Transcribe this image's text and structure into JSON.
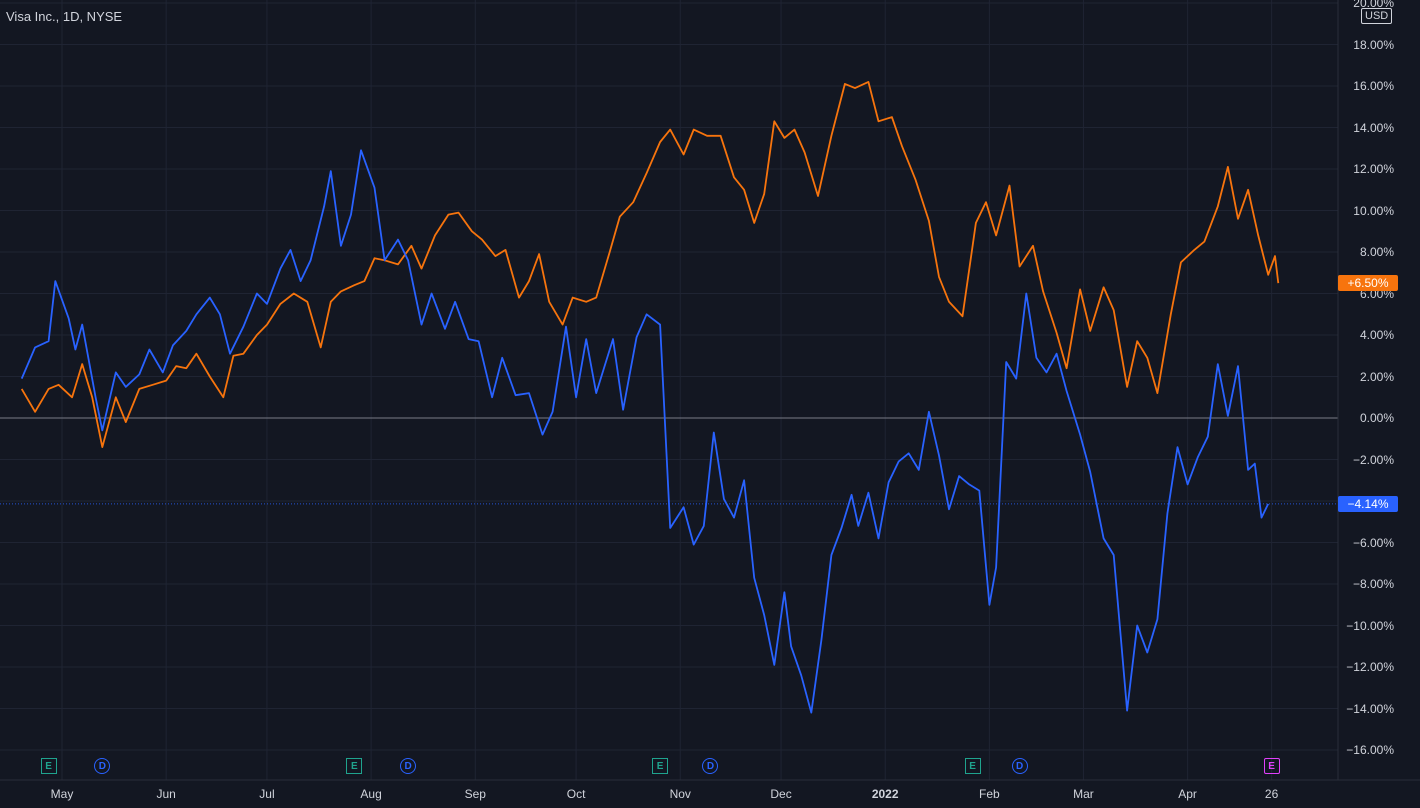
{
  "header": {
    "title": "Visa Inc., 1D, NYSE",
    "currency": "USD"
  },
  "colors": {
    "background": "#131722",
    "grid": "#1f2433",
    "series_blue": "#2962ff",
    "series_orange": "#f7740d",
    "zero_line": "#787b86",
    "text": "#d1d4dc"
  },
  "events": [
    {
      "type": "E",
      "icon": "earnings-icon",
      "date": "2021-04-27"
    },
    {
      "type": "D",
      "icon": "dividend-icon",
      "date": "2021-05-13"
    },
    {
      "type": "E",
      "icon": "earnings-icon",
      "date": "2021-07-27"
    },
    {
      "type": "D",
      "icon": "dividend-icon",
      "date": "2021-08-12"
    },
    {
      "type": "E",
      "icon": "earnings-icon",
      "date": "2021-10-26"
    },
    {
      "type": "D",
      "icon": "dividend-icon",
      "date": "2021-11-10"
    },
    {
      "type": "E",
      "icon": "earnings-icon",
      "date": "2022-01-27"
    },
    {
      "type": "D",
      "icon": "dividend-icon",
      "date": "2022-02-10"
    },
    {
      "type": "E",
      "icon": "upcoming-earnings-icon",
      "date": "2022-04-26",
      "upcoming": true
    }
  ],
  "chart_data": {
    "type": "line",
    "title": "Visa Inc., 1D, NYSE",
    "y_unit": "%",
    "ylim": [
      -16,
      20
    ],
    "y_ticks": [
      "20.00%",
      "18.00%",
      "16.00%",
      "14.00%",
      "12.00%",
      "10.00%",
      "8.00%",
      "6.00%",
      "4.00%",
      "2.00%",
      "0.00%",
      "-2.00%",
      "-4.00%",
      "-6.00%",
      "-8.00%",
      "-10.00%",
      "-12.00%",
      "-14.00%",
      "-16.00%"
    ],
    "x_ticks": [
      {
        "label": "May",
        "date": "2021-05-01"
      },
      {
        "label": "Jun",
        "date": "2021-06-01"
      },
      {
        "label": "Jul",
        "date": "2021-07-01"
      },
      {
        "label": "Aug",
        "date": "2021-08-01"
      },
      {
        "label": "Sep",
        "date": "2021-09-01"
      },
      {
        "label": "Oct",
        "date": "2021-10-01"
      },
      {
        "label": "Nov",
        "date": "2021-11-01"
      },
      {
        "label": "Dec",
        "date": "2021-12-01"
      },
      {
        "label": "2022",
        "date": "2022-01-01",
        "bold": true
      },
      {
        "label": "Feb",
        "date": "2022-02-01"
      },
      {
        "label": "Mar",
        "date": "2022-03-01"
      },
      {
        "label": "Apr",
        "date": "2022-04-01"
      },
      {
        "label": "26",
        "date": "2022-04-26"
      }
    ],
    "grid": true,
    "series": [
      {
        "color": "#2962ff",
        "last_value_label": "−4.14%",
        "points": [
          [
            "2021-04-19",
            1.9
          ],
          [
            "2021-04-23",
            3.4
          ],
          [
            "2021-04-27",
            3.7
          ],
          [
            "2021-04-29",
            6.6
          ],
          [
            "2021-05-03",
            4.8
          ],
          [
            "2021-05-05",
            3.3
          ],
          [
            "2021-05-07",
            4.5
          ],
          [
            "2021-05-11",
            1.0
          ],
          [
            "2021-05-13",
            -0.6
          ],
          [
            "2021-05-17",
            2.2
          ],
          [
            "2021-05-20",
            1.5
          ],
          [
            "2021-05-24",
            2.1
          ],
          [
            "2021-05-27",
            3.3
          ],
          [
            "2021-05-31",
            2.2
          ],
          [
            "2021-06-03",
            3.5
          ],
          [
            "2021-06-07",
            4.2
          ],
          [
            "2021-06-10",
            5.0
          ],
          [
            "2021-06-14",
            5.8
          ],
          [
            "2021-06-17",
            5.0
          ],
          [
            "2021-06-20",
            3.1
          ],
          [
            "2021-06-24",
            4.4
          ],
          [
            "2021-06-28",
            6.0
          ],
          [
            "2021-07-01",
            5.5
          ],
          [
            "2021-07-05",
            7.2
          ],
          [
            "2021-07-08",
            8.1
          ],
          [
            "2021-07-11",
            6.6
          ],
          [
            "2021-07-14",
            7.6
          ],
          [
            "2021-07-18",
            10.2
          ],
          [
            "2021-07-20",
            11.9
          ],
          [
            "2021-07-23",
            8.3
          ],
          [
            "2021-07-26",
            9.8
          ],
          [
            "2021-07-29",
            12.9
          ],
          [
            "2021-08-02",
            11.1
          ],
          [
            "2021-08-05",
            7.6
          ],
          [
            "2021-08-09",
            8.6
          ],
          [
            "2021-08-12",
            7.6
          ],
          [
            "2021-08-16",
            4.5
          ],
          [
            "2021-08-19",
            6.0
          ],
          [
            "2021-08-23",
            4.3
          ],
          [
            "2021-08-26",
            5.6
          ],
          [
            "2021-08-30",
            3.8
          ],
          [
            "2021-09-02",
            3.7
          ],
          [
            "2021-09-06",
            1.0
          ],
          [
            "2021-09-09",
            2.9
          ],
          [
            "2021-09-13",
            1.1
          ],
          [
            "2021-09-17",
            1.2
          ],
          [
            "2021-09-21",
            -0.8
          ],
          [
            "2021-09-24",
            0.3
          ],
          [
            "2021-09-28",
            4.4
          ],
          [
            "2021-10-01",
            1.0
          ],
          [
            "2021-10-04",
            3.8
          ],
          [
            "2021-10-07",
            1.2
          ],
          [
            "2021-10-12",
            3.8
          ],
          [
            "2021-10-15",
            0.4
          ],
          [
            "2021-10-19",
            3.9
          ],
          [
            "2021-10-22",
            5.0
          ],
          [
            "2021-10-26",
            4.5
          ],
          [
            "2021-10-29",
            -5.3
          ],
          [
            "2021-11-02",
            -4.3
          ],
          [
            "2021-11-05",
            -6.1
          ],
          [
            "2021-11-08",
            -5.2
          ],
          [
            "2021-11-11",
            -0.7
          ],
          [
            "2021-11-14",
            -3.9
          ],
          [
            "2021-11-17",
            -4.8
          ],
          [
            "2021-11-20",
            -3.0
          ],
          [
            "2021-11-23",
            -7.7
          ],
          [
            "2021-11-26",
            -9.5
          ],
          [
            "2021-11-29",
            -11.9
          ],
          [
            "2021-12-02",
            -8.4
          ],
          [
            "2021-12-04",
            -11.0
          ],
          [
            "2021-12-07",
            -12.4
          ],
          [
            "2021-12-10",
            -14.2
          ],
          [
            "2021-12-13",
            -10.7
          ],
          [
            "2021-12-16",
            -6.6
          ],
          [
            "2021-12-19",
            -5.3
          ],
          [
            "2021-12-22",
            -3.7
          ],
          [
            "2021-12-24",
            -5.2
          ],
          [
            "2021-12-27",
            -3.6
          ],
          [
            "2021-12-30",
            -5.8
          ],
          [
            "2022-01-02",
            -3.1
          ],
          [
            "2022-01-05",
            -2.1
          ],
          [
            "2022-01-08",
            -1.7
          ],
          [
            "2022-01-11",
            -2.5
          ],
          [
            "2022-01-14",
            0.3
          ],
          [
            "2022-01-17",
            -1.8
          ],
          [
            "2022-01-20",
            -4.4
          ],
          [
            "2022-01-23",
            -2.8
          ],
          [
            "2022-01-26",
            -3.2
          ],
          [
            "2022-01-29",
            -3.5
          ],
          [
            "2022-02-01",
            -9.0
          ],
          [
            "2022-02-03",
            -7.2
          ],
          [
            "2022-02-06",
            2.7
          ],
          [
            "2022-02-09",
            1.9
          ],
          [
            "2022-02-12",
            6.0
          ],
          [
            "2022-02-15",
            2.9
          ],
          [
            "2022-02-18",
            2.2
          ],
          [
            "2022-02-21",
            3.1
          ],
          [
            "2022-02-24",
            1.3
          ],
          [
            "2022-02-28",
            -0.8
          ],
          [
            "2022-03-03",
            -2.6
          ],
          [
            "2022-03-07",
            -5.8
          ],
          [
            "2022-03-10",
            -6.6
          ],
          [
            "2022-03-14",
            -14.1
          ],
          [
            "2022-03-17",
            -10.0
          ],
          [
            "2022-03-20",
            -11.3
          ],
          [
            "2022-03-23",
            -9.7
          ],
          [
            "2022-03-26",
            -4.6
          ],
          [
            "2022-03-29",
            -1.4
          ],
          [
            "2022-04-01",
            -3.2
          ],
          [
            "2022-04-04",
            -1.9
          ],
          [
            "2022-04-07",
            -0.9
          ],
          [
            "2022-04-10",
            2.6
          ],
          [
            "2022-04-13",
            0.1
          ],
          [
            "2022-04-16",
            2.5
          ],
          [
            "2022-04-19",
            -2.5
          ],
          [
            "2022-04-21",
            -2.2
          ],
          [
            "2022-04-23",
            -4.8
          ],
          [
            "2022-04-25",
            -4.14
          ]
        ]
      },
      {
        "color": "#f7740d",
        "last_value_label": "+6.50%",
        "points": [
          [
            "2021-04-19",
            1.4
          ],
          [
            "2021-04-23",
            0.3
          ],
          [
            "2021-04-27",
            1.4
          ],
          [
            "2021-04-30",
            1.6
          ],
          [
            "2021-05-04",
            1.0
          ],
          [
            "2021-05-07",
            2.6
          ],
          [
            "2021-05-10",
            1.0
          ],
          [
            "2021-05-13",
            -1.4
          ],
          [
            "2021-05-17",
            1.0
          ],
          [
            "2021-05-20",
            -0.2
          ],
          [
            "2021-05-24",
            1.4
          ],
          [
            "2021-05-28",
            1.6
          ],
          [
            "2021-06-01",
            1.8
          ],
          [
            "2021-06-04",
            2.5
          ],
          [
            "2021-06-07",
            2.4
          ],
          [
            "2021-06-10",
            3.1
          ],
          [
            "2021-06-14",
            2.0
          ],
          [
            "2021-06-18",
            1.0
          ],
          [
            "2021-06-21",
            3.0
          ],
          [
            "2021-06-24",
            3.1
          ],
          [
            "2021-06-28",
            4.0
          ],
          [
            "2021-07-01",
            4.5
          ],
          [
            "2021-07-05",
            5.5
          ],
          [
            "2021-07-09",
            6.0
          ],
          [
            "2021-07-13",
            5.6
          ],
          [
            "2021-07-17",
            3.4
          ],
          [
            "2021-07-20",
            5.6
          ],
          [
            "2021-07-23",
            6.1
          ],
          [
            "2021-07-27",
            6.4
          ],
          [
            "2021-07-30",
            6.6
          ],
          [
            "2021-08-02",
            7.7
          ],
          [
            "2021-08-05",
            7.6
          ],
          [
            "2021-08-09",
            7.4
          ],
          [
            "2021-08-13",
            8.3
          ],
          [
            "2021-08-16",
            7.2
          ],
          [
            "2021-08-20",
            8.8
          ],
          [
            "2021-08-24",
            9.8
          ],
          [
            "2021-08-27",
            9.9
          ],
          [
            "2021-08-31",
            9.0
          ],
          [
            "2021-09-03",
            8.6
          ],
          [
            "2021-09-07",
            7.8
          ],
          [
            "2021-09-10",
            8.1
          ],
          [
            "2021-09-14",
            5.8
          ],
          [
            "2021-09-17",
            6.6
          ],
          [
            "2021-09-20",
            7.9
          ],
          [
            "2021-09-23",
            5.6
          ],
          [
            "2021-09-27",
            4.5
          ],
          [
            "2021-09-30",
            5.8
          ],
          [
            "2021-10-04",
            5.6
          ],
          [
            "2021-10-07",
            5.8
          ],
          [
            "2021-10-11",
            8.0
          ],
          [
            "2021-10-14",
            9.7
          ],
          [
            "2021-10-18",
            10.4
          ],
          [
            "2021-10-22",
            11.8
          ],
          [
            "2021-10-26",
            13.3
          ],
          [
            "2021-10-29",
            13.9
          ],
          [
            "2021-11-02",
            12.7
          ],
          [
            "2021-11-05",
            13.9
          ],
          [
            "2021-11-09",
            13.6
          ],
          [
            "2021-11-13",
            13.6
          ],
          [
            "2021-11-17",
            11.6
          ],
          [
            "2021-11-20",
            11.0
          ],
          [
            "2021-11-23",
            9.4
          ],
          [
            "2021-11-26",
            10.8
          ],
          [
            "2021-11-29",
            14.3
          ],
          [
            "2021-12-02",
            13.5
          ],
          [
            "2021-12-05",
            13.9
          ],
          [
            "2021-12-08",
            12.8
          ],
          [
            "2021-12-12",
            10.7
          ],
          [
            "2021-12-16",
            13.6
          ],
          [
            "2021-12-20",
            16.1
          ],
          [
            "2021-12-23",
            15.9
          ],
          [
            "2021-12-27",
            16.2
          ],
          [
            "2021-12-30",
            14.3
          ],
          [
            "2022-01-03",
            14.5
          ],
          [
            "2022-01-06",
            13.1
          ],
          [
            "2022-01-10",
            11.5
          ],
          [
            "2022-01-14",
            9.5
          ],
          [
            "2022-01-17",
            6.8
          ],
          [
            "2022-01-20",
            5.6
          ],
          [
            "2022-01-24",
            4.9
          ],
          [
            "2022-01-28",
            9.4
          ],
          [
            "2022-01-31",
            10.4
          ],
          [
            "2022-02-03",
            8.8
          ],
          [
            "2022-02-07",
            11.2
          ],
          [
            "2022-02-10",
            7.3
          ],
          [
            "2022-02-14",
            8.3
          ],
          [
            "2022-02-17",
            6.1
          ],
          [
            "2022-02-21",
            4.1
          ],
          [
            "2022-02-24",
            2.4
          ],
          [
            "2022-02-28",
            6.2
          ],
          [
            "2022-03-03",
            4.2
          ],
          [
            "2022-03-07",
            6.3
          ],
          [
            "2022-03-10",
            5.2
          ],
          [
            "2022-03-14",
            1.5
          ],
          [
            "2022-03-17",
            3.7
          ],
          [
            "2022-03-20",
            2.9
          ],
          [
            "2022-03-23",
            1.2
          ],
          [
            "2022-03-27",
            5.0
          ],
          [
            "2022-03-30",
            7.5
          ],
          [
            "2022-04-03",
            8.1
          ],
          [
            "2022-04-06",
            8.5
          ],
          [
            "2022-04-10",
            10.2
          ],
          [
            "2022-04-13",
            12.1
          ],
          [
            "2022-04-16",
            9.6
          ],
          [
            "2022-04-19",
            11.0
          ],
          [
            "2022-04-22",
            8.8
          ],
          [
            "2022-04-25",
            6.9
          ],
          [
            "2022-04-27",
            7.8
          ],
          [
            "2022-04-28",
            6.5
          ]
        ]
      }
    ]
  }
}
